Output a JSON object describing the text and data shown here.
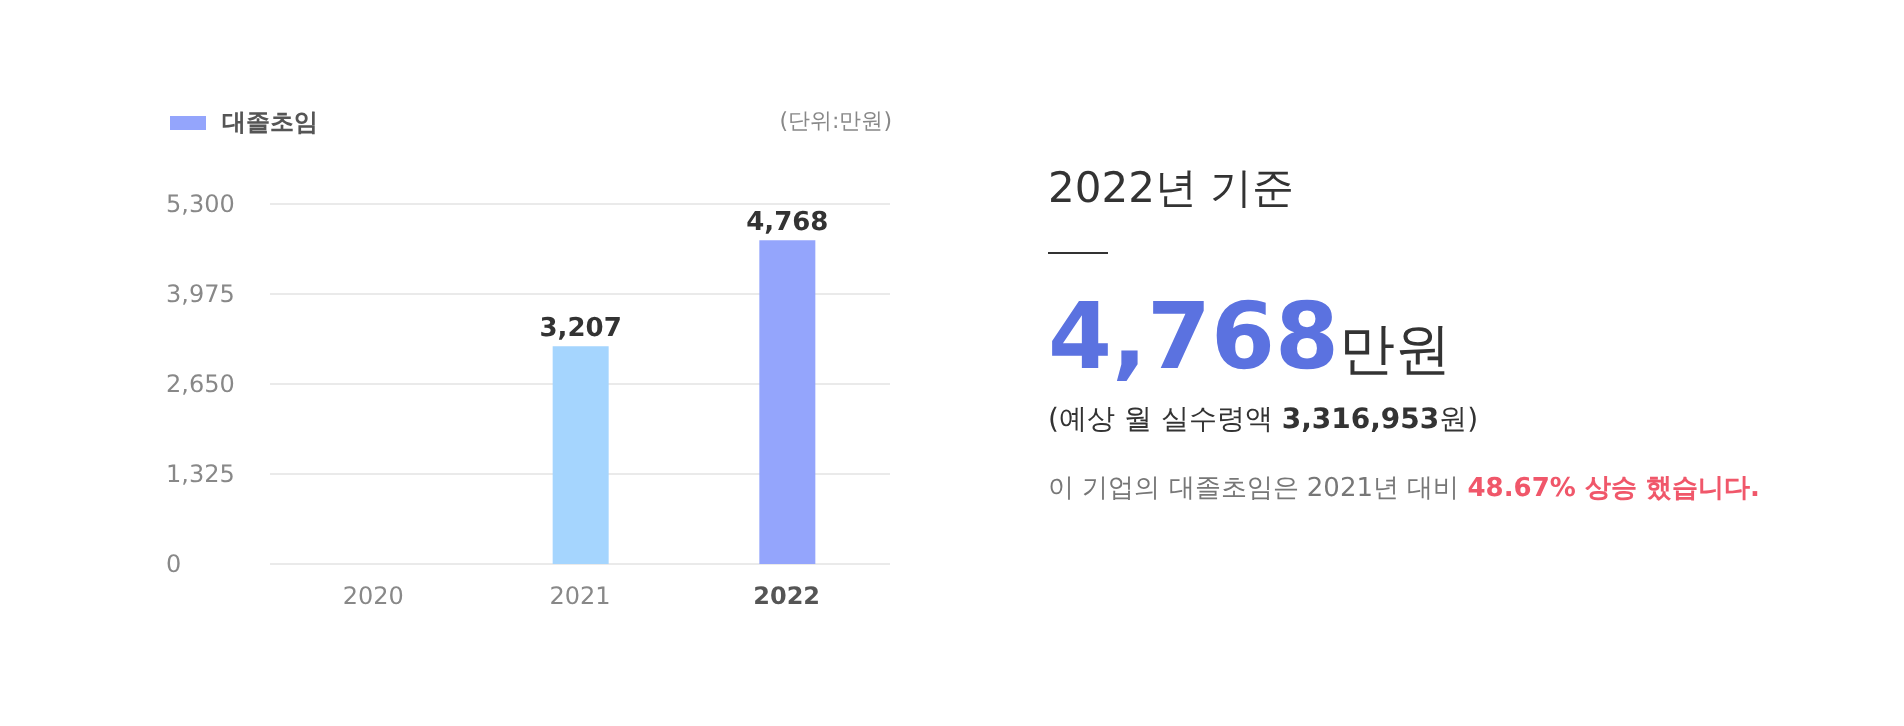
{
  "chart_data": {
    "type": "bar",
    "categories": [
      "2020",
      "2021",
      "2022"
    ],
    "series": [
      {
        "name": "대졸초임",
        "color": "#94a5fc",
        "colors": [
          "#94a5fc",
          "#a5d5fe",
          "#94a5fc"
        ],
        "values": [
          null,
          3207,
          4768
        ],
        "value_labels": [
          null,
          "3,207",
          "4,768"
        ]
      }
    ],
    "ylim": [
      0,
      5300
    ],
    "yticks": [
      {
        "value": 0,
        "label": "0"
      },
      {
        "value": 1325,
        "label": "1,325"
      },
      {
        "value": 2650,
        "label": "2,650"
      },
      {
        "value": 3975,
        "label": "3,975"
      },
      {
        "value": 5300,
        "label": "5,300"
      }
    ],
    "grid": "y",
    "legend": "top left",
    "annotations": [
      "(단위:만원)",
      "2022년 기준",
      "4,768",
      "만원",
      "(예상 월 실수령액",
      "3,316,953",
      "원)",
      "이 기업의 대졸초임은 2021년 대비",
      "48.67% 상승 했습니다."
    ]
  }
}
